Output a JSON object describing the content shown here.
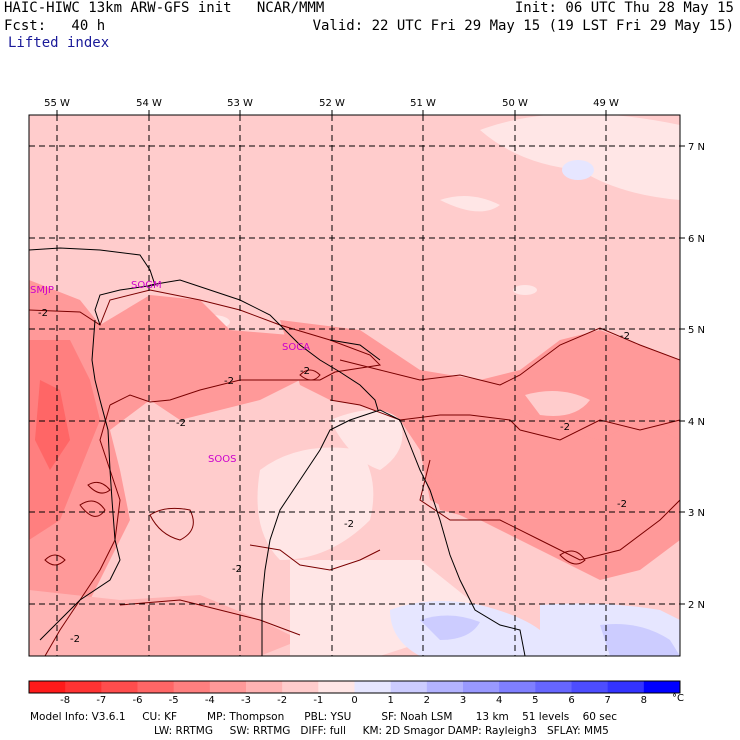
{
  "header": {
    "model_title": "HAIC-HIWC 13km ARW-GFS init   NCAR/MMM",
    "forecast": "Fcst:   40 h",
    "field": "Lifted index",
    "init": "Init: 06 UTC Thu 28 May 15",
    "valid": "Valid: 22 UTC Fri 29 May 15 (19 LST Fri 29 May 15)"
  },
  "map": {
    "lon_labels": [
      "55 W",
      "54 W",
      "53 W",
      "52 W",
      "51 W",
      "50 W",
      "49 W"
    ],
    "lat_labels": [
      "7 N",
      "6 N",
      "5 N",
      "4 N",
      "3 N",
      "2 N"
    ],
    "stations": [
      "SMJP",
      "SOGM",
      "SOCA",
      "SOOS"
    ],
    "contour_label": "-2"
  },
  "colorbar": {
    "ticks": [
      "-8",
      "-7",
      "-6",
      "-5",
      "-4",
      "-3",
      "-2",
      "-1",
      "0",
      "1",
      "2",
      "3",
      "4",
      "5",
      "6",
      "7",
      "8"
    ],
    "unit": "°C",
    "colors": [
      "#ff1a1a",
      "#ff3333",
      "#ff4d4d",
      "#ff6666",
      "#ff7f7f",
      "#ff9999",
      "#ffb3b3",
      "#ffcccc",
      "#ffe6e6",
      "#e6e6ff",
      "#ccccff",
      "#b3b3ff",
      "#9999ff",
      "#7f7fff",
      "#6666ff",
      "#4d4dff",
      "#3333ff",
      "#0000ff"
    ]
  },
  "footer": {
    "line1": "Model Info: V3.6.1     CU: KF         MP: Thompson      PBL: YSU         SF: Noah LSM       13 km    51 levels    60 sec",
    "line2": "LW: RRTMG     SW: RRTMG   DIFF: full     KM: 2D Smagor DAMP: Rayleigh3   SFLAY: MM5"
  }
}
